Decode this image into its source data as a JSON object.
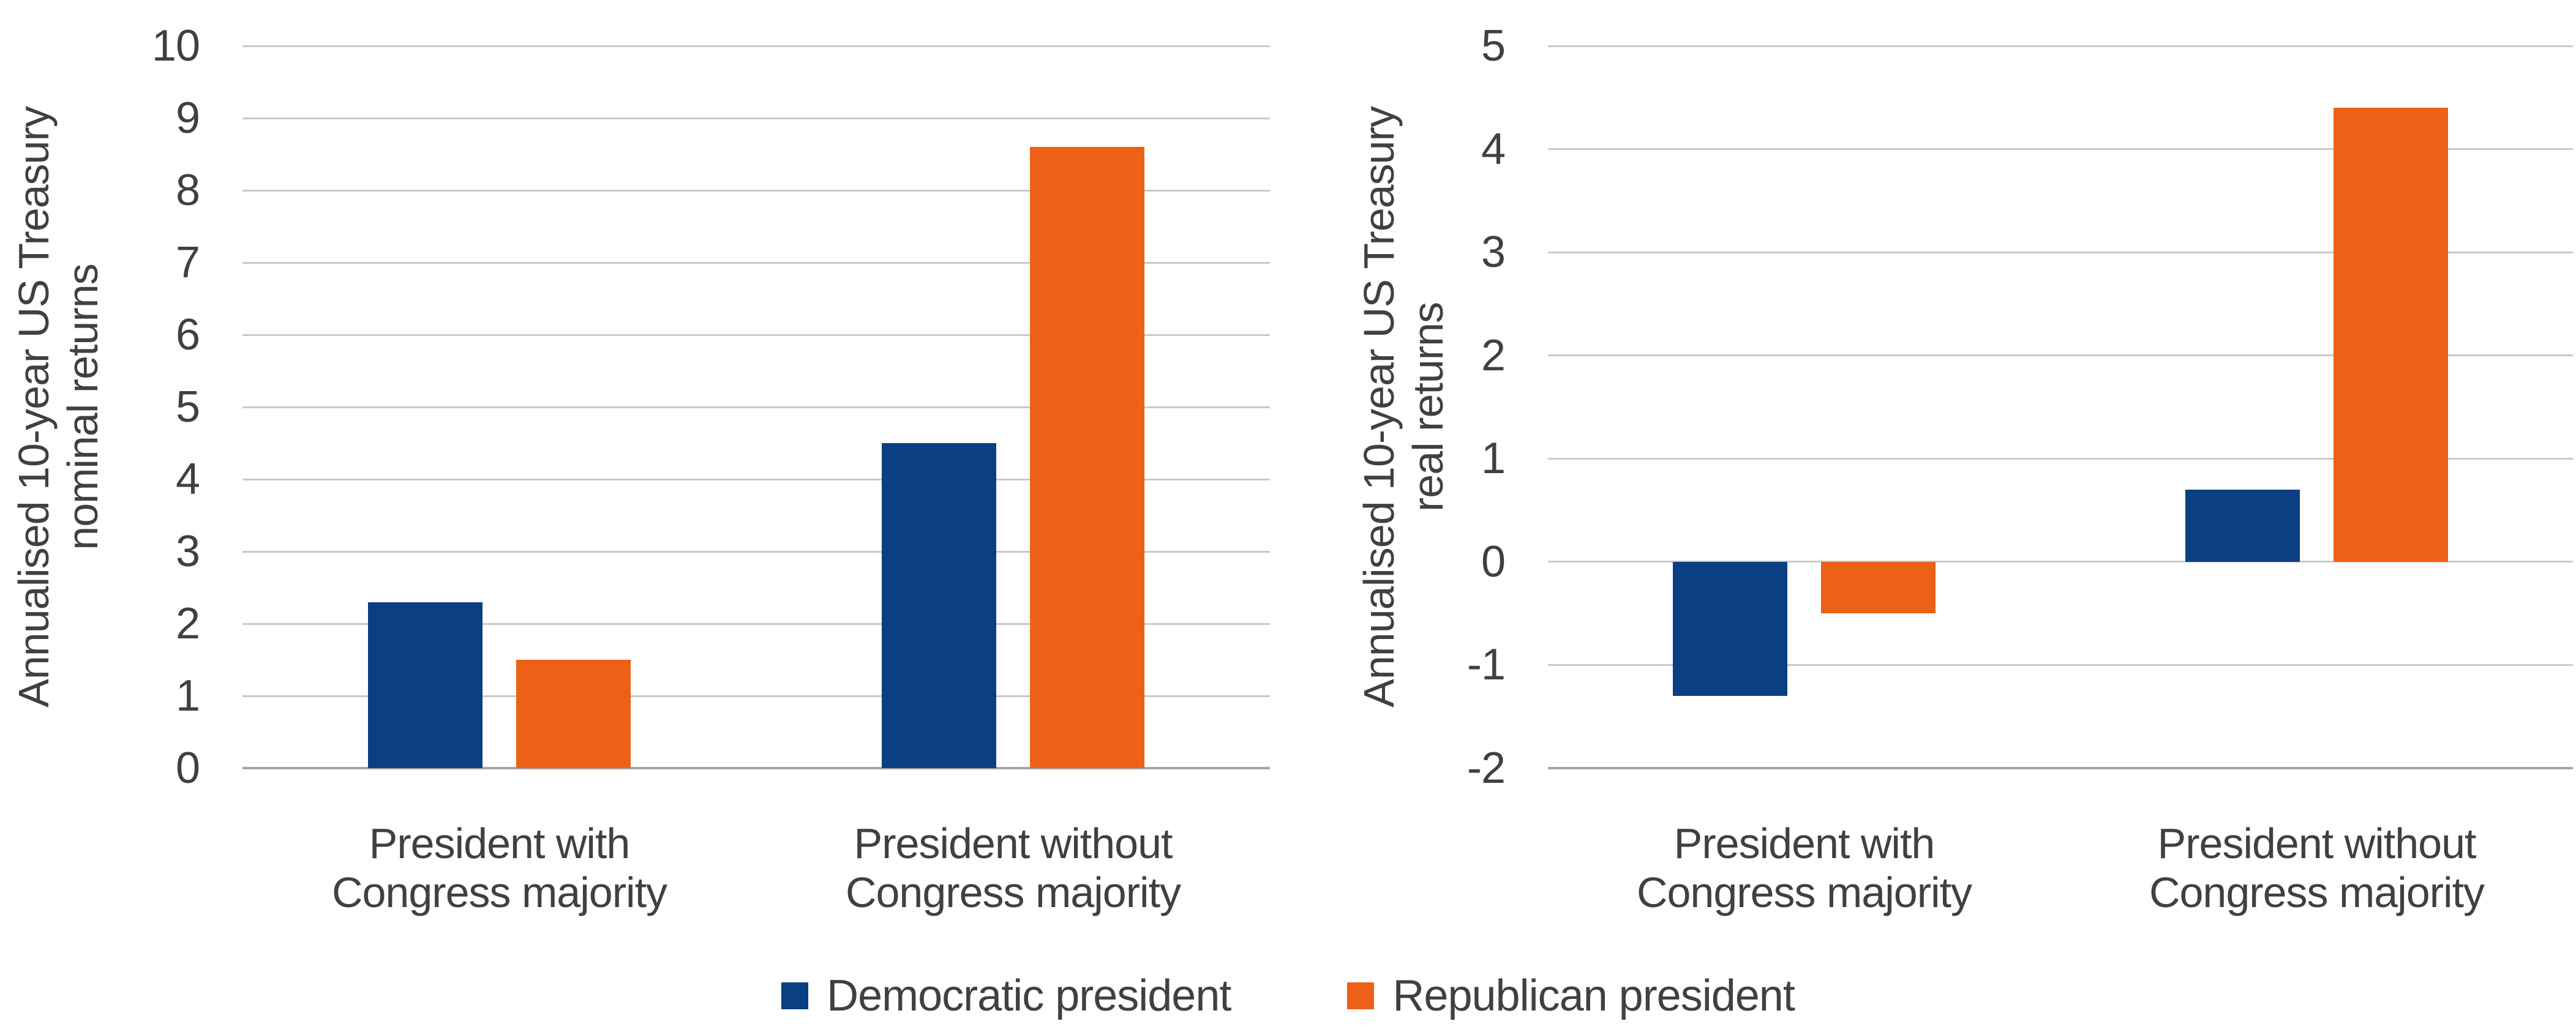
{
  "chart_data": [
    {
      "type": "bar",
      "title": "",
      "xlabel": "",
      "ylabel": "Annualised 10-year US Treasury\nnominal returns",
      "ylim": [
        0,
        10
      ],
      "yticks": [
        0,
        1,
        2,
        3,
        4,
        5,
        6,
        7,
        8,
        9,
        10
      ],
      "grid": true,
      "legend_position": "bottom",
      "categories": [
        "President with\nCongress majority",
        "President without\nCongress majority"
      ],
      "series": [
        {
          "name": "Democratic president",
          "color": "#0A4083",
          "values": [
            2.3,
            4.5
          ]
        },
        {
          "name": "Republican president",
          "color": "#EC6117",
          "values": [
            1.5,
            8.6
          ]
        }
      ]
    },
    {
      "type": "bar",
      "title": "",
      "xlabel": "",
      "ylabel": "Annualised 10-year US Treasury\nreal returns",
      "ylim": [
        -2,
        5
      ],
      "yticks": [
        -2,
        -1,
        0,
        1,
        2,
        3,
        4,
        5
      ],
      "grid": true,
      "legend_position": "bottom",
      "categories": [
        "President with\nCongress majority",
        "President without\nCongress majority"
      ],
      "series": [
        {
          "name": "Democratic president",
          "color": "#0A4083",
          "values": [
            -1.3,
            0.7
          ]
        },
        {
          "name": "Republican president",
          "color": "#EC6117",
          "values": [
            -0.5,
            4.4
          ]
        }
      ]
    }
  ],
  "legend": {
    "items": [
      {
        "label": "Democratic president",
        "color": "#0A4083"
      },
      {
        "label": "Republican president",
        "color": "#EC6117"
      }
    ]
  },
  "colors": {
    "democratic_blue": "#0A4083",
    "republican_orange": "#EC6117",
    "gridline": "#C9C9C9",
    "baseline": "#A6A6A6",
    "text": "#404040",
    "background": "#FFFFFF"
  }
}
